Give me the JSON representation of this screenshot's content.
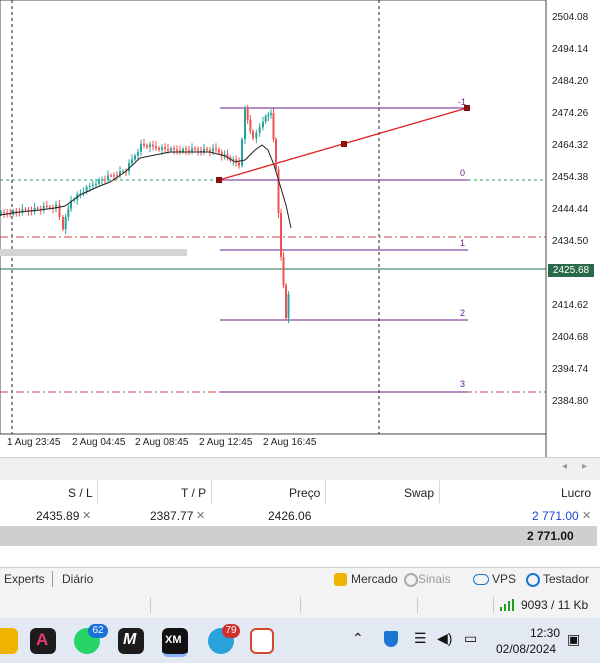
{
  "chart": {
    "price_ticks": [
      "2504.08",
      "2494.14",
      "2484.20",
      "2474.26",
      "2464.32",
      "2454.38",
      "2444.44",
      "2434.50",
      "2414.62",
      "2404.68",
      "2394.74",
      "2384.80"
    ],
    "time_ticks": [
      "1 Aug 23:45",
      "2 Aug 04:45",
      "2 Aug 08:45",
      "2 Aug 12:45",
      "2 Aug 16:45"
    ],
    "current_price": "2425.68",
    "fib_levels": [
      "-1",
      "0",
      "1",
      "2",
      "3"
    ],
    "colors": {
      "bull": "#26a69a",
      "bear": "#ef5350",
      "fib": "#6a1e8a",
      "trend": "#e02020",
      "grid": "#e6e6e6"
    }
  },
  "table": {
    "headers": {
      "sl": "S / L",
      "tp": "T / P",
      "price": "Preço",
      "swap": "Swap",
      "profit": "Lucro"
    },
    "row": {
      "sl": "2435.89",
      "tp": "2387.77",
      "price": "2426.06",
      "profit": "2 771.00"
    },
    "total": "2 771.00"
  },
  "tabs": {
    "experts": "Experts",
    "diario": "Diário"
  },
  "status": {
    "mercado": "Mercado",
    "sinais": "Sinais",
    "vps": "VPS",
    "testador": "Testador",
    "connection": "9093 / 11 Kb"
  },
  "taskbar": {
    "whatsapp_badge": "62",
    "telegram_badge": "79",
    "time": "12:30",
    "date": "02/08/2024"
  }
}
